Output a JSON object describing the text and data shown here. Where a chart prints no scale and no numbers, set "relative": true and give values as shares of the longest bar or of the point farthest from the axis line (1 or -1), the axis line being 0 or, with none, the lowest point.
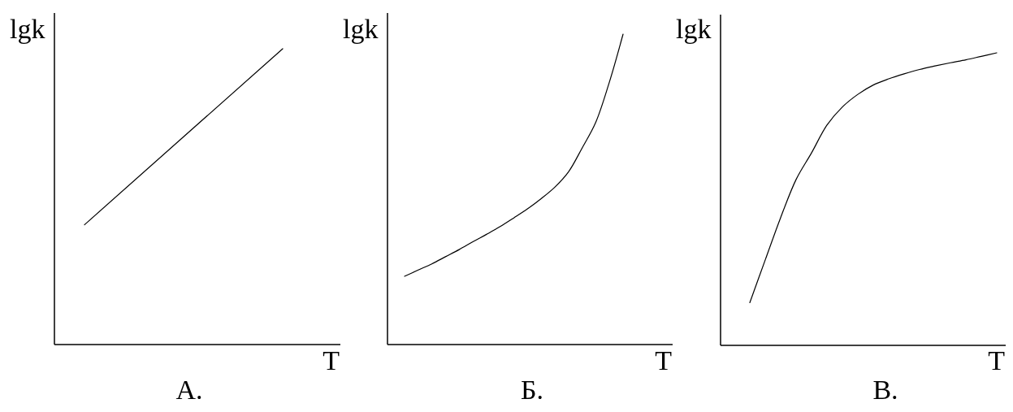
{
  "chart_data": [
    {
      "type": "line",
      "title": "А.",
      "xlabel": "T",
      "ylabel": "lgk",
      "categories": [
        null,
        null
      ],
      "values": [
        0.405,
        1
      ],
      "color": "#000000",
      "relative": true
    },
    {
      "type": "line",
      "title": "Б.",
      "xlabel": "T",
      "ylabel": "lgk",
      "categories": [
        null,
        null,
        null,
        null,
        null,
        null,
        null,
        null,
        null,
        null,
        null,
        null,
        null,
        null,
        null,
        null,
        null
      ],
      "values": [
        0.22,
        0.24,
        0.26,
        0.283,
        0.306,
        0.331,
        0.355,
        0.38,
        0.408,
        0.437,
        0.47,
        0.507,
        0.556,
        0.633,
        0.716,
        0.846,
        1
      ],
      "color": "#000000",
      "relative": true
    },
    {
      "type": "line",
      "title": "В.",
      "xlabel": "T",
      "ylabel": "lgk",
      "categories": [
        null,
        null,
        null,
        null,
        null,
        null,
        null,
        null,
        null,
        null,
        null,
        null,
        null,
        null,
        null,
        null,
        null
      ],
      "values": [
        0.146,
        0.292,
        0.437,
        0.567,
        0.658,
        0.753,
        0.815,
        0.858,
        0.89,
        0.911,
        0.928,
        0.943,
        0.955,
        0.966,
        0.976,
        0.988,
        1
      ],
      "color": "#000000",
      "relative": true
    }
  ]
}
